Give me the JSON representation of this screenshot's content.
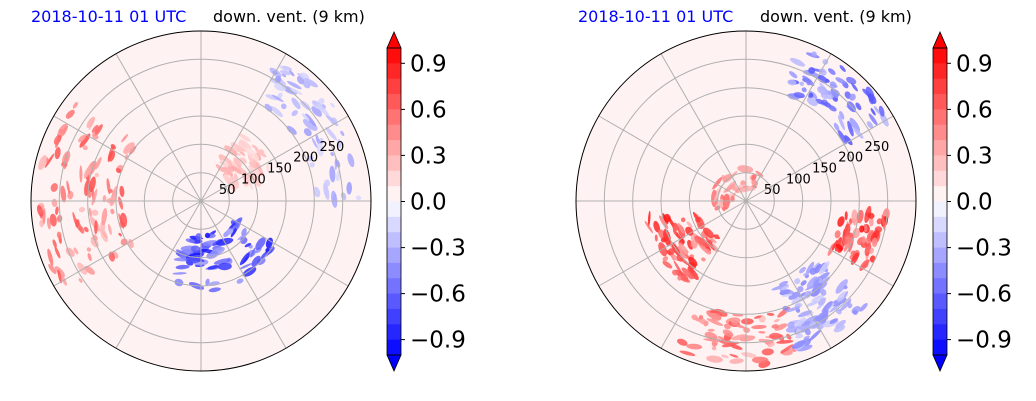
{
  "colors": {
    "positive": "#ff0000",
    "negative": "#0000ff",
    "neutral": "#ffffff",
    "title_time": "#0000ff",
    "title_var": "#000000",
    "grid": "#b0b0b0"
  },
  "chart_data": [
    {
      "type": "heatmap",
      "projection": "polar",
      "title_left": "2018-10-11 01 UTC",
      "title_right": "down. vent. (9 km)",
      "radial_ticks": [
        50,
        100,
        150,
        200,
        250
      ],
      "rlim": [
        0,
        300
      ],
      "angular_grid_deg": 30,
      "grid": true,
      "colorbar": {
        "ticks": [
          -0.9,
          -0.6,
          -0.3,
          0.0,
          0.3,
          0.6,
          0.9
        ],
        "tick_labels": [
          "−0.9",
          "−0.6",
          "−0.3",
          "0.0",
          "0.3",
          "0.6",
          "0.9"
        ],
        "range": [
          -1.0,
          1.0
        ],
        "levels": 20,
        "extend": "both",
        "colormap": "bwr"
      },
      "features": [
        {
          "sign": "positive",
          "r": [
            140,
            290
          ],
          "theta_deg": [
            140,
            215
          ],
          "intensity": 0.7
        },
        {
          "sign": "negative",
          "r": [
            60,
            160
          ],
          "theta_deg": [
            250,
            330
          ],
          "intensity": 0.95
        },
        {
          "sign": "negative",
          "r": [
            200,
            290
          ],
          "theta_deg": [
            0,
            60
          ],
          "intensity": 0.4
        },
        {
          "sign": "positive",
          "r": [
            60,
            140
          ],
          "theta_deg": [
            20,
            60
          ],
          "intensity": 0.35
        }
      ]
    },
    {
      "type": "heatmap",
      "projection": "polar",
      "title_left": "2018-10-11 01 UTC",
      "title_right": "down. vent. (9 km)",
      "radial_ticks": [
        50,
        100,
        150,
        200,
        250
      ],
      "rlim": [
        0,
        300
      ],
      "angular_grid_deg": 30,
      "grid": true,
      "colorbar": {
        "ticks": [
          -0.9,
          -0.6,
          -0.3,
          0.0,
          0.3,
          0.6,
          0.9
        ],
        "tick_labels": [
          "−0.9",
          "−0.6",
          "−0.3",
          "0.0",
          "0.3",
          "0.6",
          "0.9"
        ],
        "range": [
          -1.0,
          1.0
        ],
        "levels": 20,
        "extend": "both",
        "colormap": "bwr"
      },
      "features": [
        {
          "sign": "positive",
          "r": [
            170,
            250
          ],
          "theta_deg": [
            330,
            355
          ],
          "intensity": 1.0
        },
        {
          "sign": "negative",
          "r": [
            200,
            290
          ],
          "theta_deg": [
            30,
            70
          ],
          "intensity": 0.7
        },
        {
          "sign": "positive",
          "r": [
            80,
            180
          ],
          "theta_deg": [
            190,
            235
          ],
          "intensity": 0.9
        },
        {
          "sign": "positive",
          "r": [
            200,
            290
          ],
          "theta_deg": [
            245,
            290
          ],
          "intensity": 0.7
        },
        {
          "sign": "negative",
          "r": [
            150,
            280
          ],
          "theta_deg": [
            290,
            320
          ],
          "intensity": 0.5
        },
        {
          "sign": "positive",
          "r": [
            20,
            60
          ],
          "theta_deg": [
            60,
            200
          ],
          "intensity": 0.6
        }
      ]
    }
  ]
}
